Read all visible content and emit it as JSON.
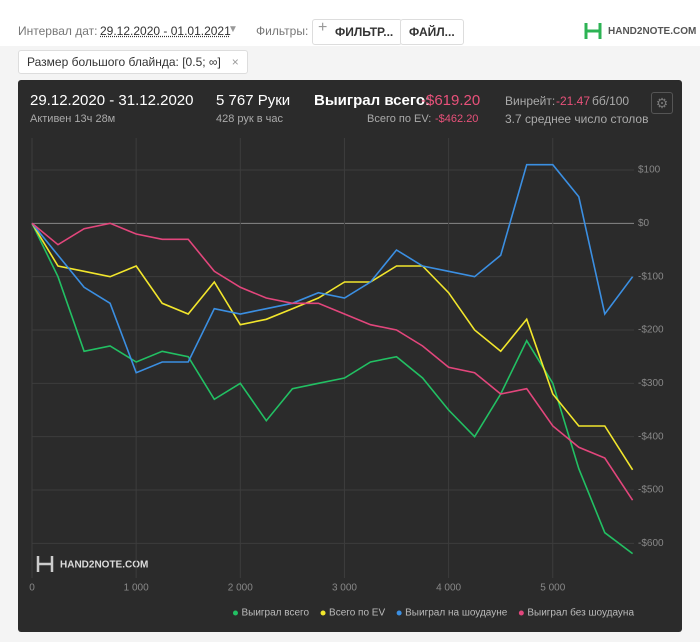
{
  "header": {
    "interval_label": "Интервал дат:",
    "interval_value": "29.12.2020 - 01.01.2021",
    "filters_label": "Фильтры:",
    "filter_button": "ФИЛЬТР...",
    "file_button": "ФАЙЛ...",
    "logo": "HAND2NOTE.COM",
    "chip": "Размер большого блайнда: [0.5; ∞]"
  },
  "stats": {
    "period": "29.12.2020 - 31.12.2020",
    "active": "Активен 13ч 28м",
    "hands": "5 767 Руки",
    "hands_per_hour": "428 рук в час",
    "won_label": "Выиграл всего:",
    "won_value": "-$619.20",
    "ev_label": "Всего по EV:",
    "ev_value": "-$462.20",
    "winrate_label": "Винрейт:",
    "winrate_value": "-21.47",
    "winrate_unit": "бб/100",
    "tables": "3.7 среднее число столов"
  },
  "chart_data": {
    "type": "line",
    "watermark": "HAND2NOTE.COM",
    "x": [
      0,
      250,
      500,
      750,
      1000,
      1250,
      1500,
      1750,
      2000,
      2250,
      2500,
      2750,
      3000,
      3250,
      3500,
      3750,
      4000,
      4250,
      4500,
      4750,
      5000,
      5250,
      5500,
      5767
    ],
    "series": [
      {
        "name": "Выиграл всего",
        "color": "#22c063",
        "values": [
          0,
          -100,
          -240,
          -230,
          -260,
          -240,
          -250,
          -330,
          -300,
          -370,
          -310,
          -300,
          -290,
          -260,
          -250,
          -290,
          -350,
          -400,
          -320,
          -220,
          -300,
          -460,
          -580,
          -619.2
        ]
      },
      {
        "name": "Всего по EV",
        "color": "#f2e62c",
        "values": [
          0,
          -80,
          -90,
          -100,
          -80,
          -150,
          -170,
          -110,
          -190,
          -180,
          -160,
          -140,
          -110,
          -110,
          -80,
          -80,
          -130,
          -200,
          -240,
          -180,
          -320,
          -380,
          -380,
          -462.2
        ]
      },
      {
        "name": "Выиграл на шоудауне",
        "color": "#3b8fe2",
        "values": [
          0,
          -60,
          -120,
          -150,
          -280,
          -260,
          -260,
          -160,
          -170,
          -160,
          -150,
          -130,
          -140,
          -110,
          -50,
          -80,
          -90,
          -100,
          -60,
          110,
          110,
          50,
          -170,
          -100
        ]
      },
      {
        "name": "Выиграл без шоудауна",
        "color": "#e2467c",
        "values": [
          0,
          -40,
          -10,
          0,
          -20,
          -30,
          -30,
          -90,
          -120,
          -140,
          -150,
          -150,
          -170,
          -190,
          -200,
          -230,
          -270,
          -280,
          -320,
          -310,
          -380,
          -420,
          -440,
          -519.2
        ]
      }
    ],
    "xlim": [
      0,
      5780
    ],
    "ylim": [
      -665,
      160
    ],
    "xticks": [
      0,
      {
        "value": 1000,
        "label": "1 000"
      },
      {
        "value": 2000,
        "label": "2 000"
      },
      {
        "value": 3000,
        "label": "3 000"
      },
      {
        "value": 4000,
        "label": "4 000"
      },
      {
        "value": 5000,
        "label": "5 000"
      }
    ],
    "yticks": [
      {
        "value": 100,
        "label": "$100"
      },
      {
        "value": 0,
        "label": "$0"
      },
      {
        "value": -100,
        "label": "-$100"
      },
      {
        "value": -200,
        "label": "-$200"
      },
      {
        "value": -300,
        "label": "-$300"
      },
      {
        "value": -400,
        "label": "-$400"
      },
      {
        "value": -500,
        "label": "-$500"
      },
      {
        "value": -600,
        "label": "-$600"
      }
    ],
    "grid": true,
    "legend": "bottom-right"
  }
}
